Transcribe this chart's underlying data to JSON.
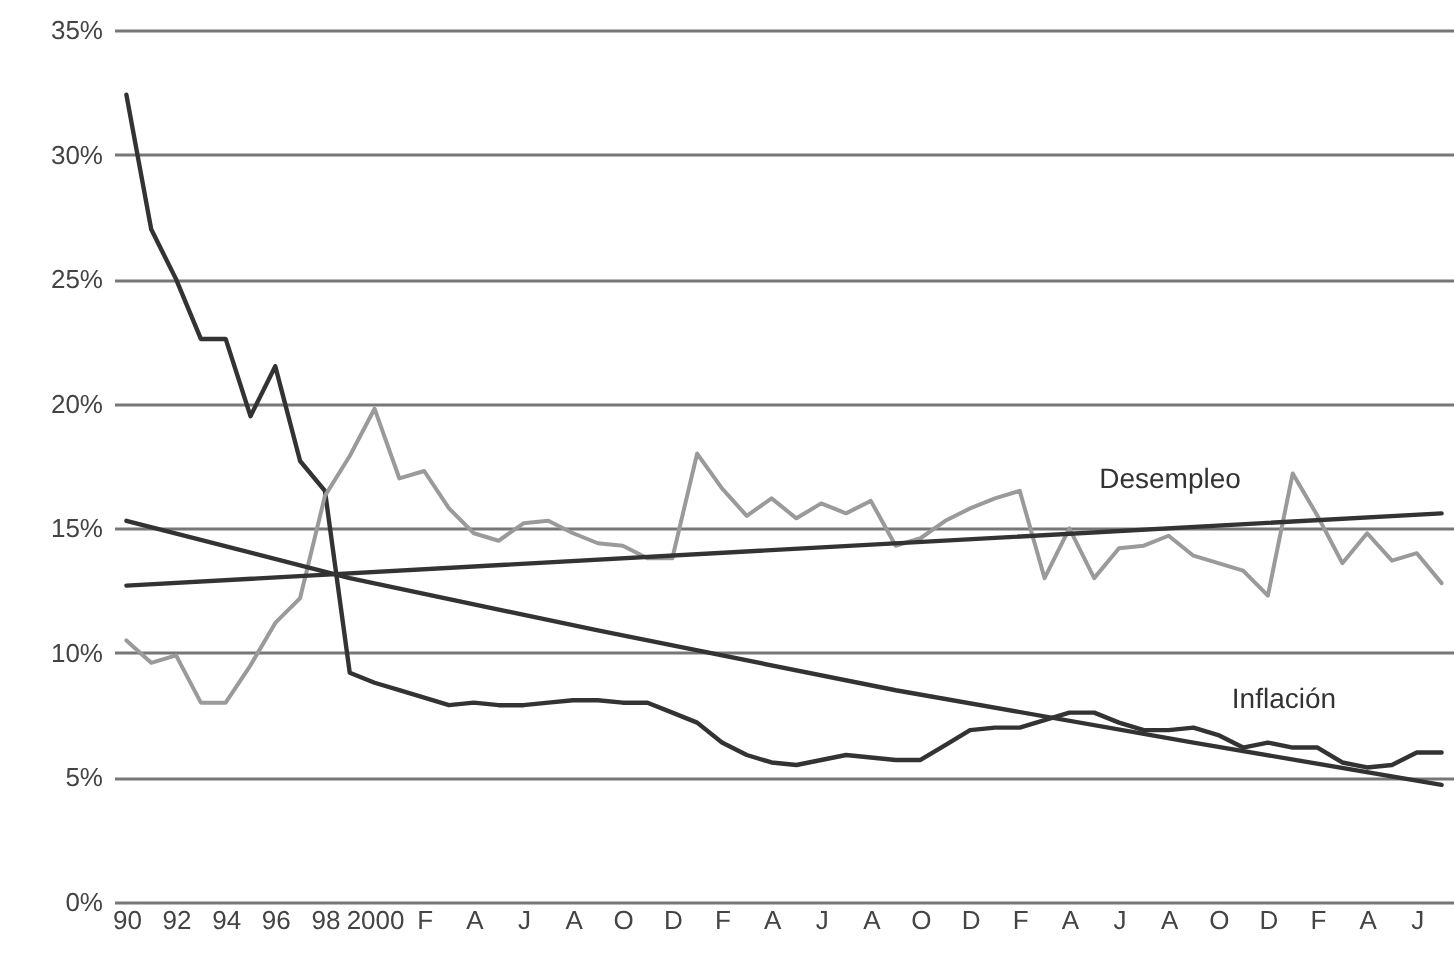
{
  "chart_data": {
    "type": "line",
    "categories": [
      "90",
      null,
      "92",
      null,
      "94",
      null,
      "96",
      null,
      "98",
      null,
      "2000",
      null,
      "F",
      null,
      "A",
      null,
      "J",
      null,
      "A",
      null,
      "O",
      null,
      "D",
      null,
      "F",
      null,
      "A",
      null,
      "J",
      null,
      "A",
      null,
      "O",
      null,
      "D",
      null,
      "F",
      null,
      "A",
      null,
      "J",
      null,
      "A",
      null,
      "O",
      null,
      "D",
      null,
      "F",
      null,
      "A",
      null,
      "J",
      null
    ],
    "series": [
      {
        "name": "Inflación",
        "color": "#333333",
        "values": [
          32.4,
          27.0,
          25.0,
          22.6,
          22.6,
          19.5,
          21.5,
          17.7,
          16.5,
          9.2,
          8.8,
          8.5,
          8.2,
          7.9,
          8.0,
          7.9,
          7.9,
          8.0,
          8.1,
          8.1,
          8.0,
          8.0,
          7.6,
          7.2,
          6.4,
          5.9,
          5.6,
          5.5,
          5.7,
          5.9,
          5.8,
          5.7,
          5.7,
          6.3,
          6.9,
          7.0,
          7.0,
          7.3,
          7.6,
          7.6,
          7.2,
          6.9,
          6.9,
          7.0,
          6.7,
          6.2,
          6.4,
          6.2,
          6.2,
          5.6,
          5.4,
          5.5,
          6.0,
          6.0
        ]
      },
      {
        "name": "Desempleo",
        "color": "#9a9a9a",
        "values": [
          10.5,
          9.6,
          9.9,
          8.0,
          8.0,
          9.5,
          11.2,
          12.2,
          16.3,
          17.9,
          19.8,
          17.0,
          17.3,
          15.8,
          14.8,
          14.5,
          15.2,
          15.3,
          14.8,
          14.4,
          14.3,
          13.8,
          13.8,
          18.0,
          16.6,
          15.5,
          16.2,
          15.4,
          16.0,
          15.6,
          16.1,
          14.3,
          14.6,
          15.3,
          15.8,
          16.2,
          16.5,
          13.0,
          15.0,
          13.0,
          14.2,
          14.3,
          14.7,
          13.9,
          13.6,
          13.3,
          12.3,
          17.2,
          15.5,
          13.6,
          14.8,
          13.7,
          14.0,
          12.8
        ]
      },
      {
        "color": "#333333",
        "values": [
          15.3,
          null,
          null,
          null,
          null,
          null,
          null,
          null,
          null,
          13.0,
          null,
          null,
          null,
          null,
          null,
          null,
          null,
          null,
          null,
          10.9,
          null,
          null,
          null,
          null,
          null,
          null,
          null,
          null,
          null,
          null,
          null,
          8.5,
          null,
          null,
          null,
          null,
          null,
          null,
          null,
          null,
          null,
          null,
          null,
          6.4,
          null,
          null,
          null,
          null,
          null,
          null,
          null,
          null,
          null,
          4.7
        ]
      },
      {
        "color": "#333333",
        "values": [
          12.7,
          null,
          null,
          null,
          null,
          null,
          null,
          null,
          null,
          null,
          null,
          null,
          null,
          null,
          null,
          null,
          null,
          null,
          null,
          null,
          null,
          null,
          null,
          null,
          null,
          null,
          null,
          null,
          null,
          null,
          null,
          null,
          null,
          null,
          null,
          null,
          null,
          null,
          null,
          null,
          null,
          null,
          null,
          null,
          null,
          null,
          null,
          null,
          null,
          null,
          null,
          null,
          null,
          15.6
        ]
      }
    ],
    "ylim": [
      0,
      35
    ],
    "yticks": [
      {
        "value": 0,
        "label": "0%"
      },
      {
        "value": 5,
        "label": "5%"
      },
      {
        "value": 10,
        "label": "10%"
      },
      {
        "value": 15,
        "label": "15%"
      },
      {
        "value": 20,
        "label": "20%"
      },
      {
        "value": 25,
        "label": "25%"
      },
      {
        "value": 30,
        "label": "30%"
      },
      {
        "value": 35,
        "label": "35%"
      }
    ],
    "grid": "y"
  }
}
